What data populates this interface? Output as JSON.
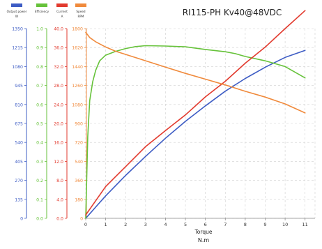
{
  "chart_data": {
    "type": "line",
    "title": "RI115-PH Kv40@48VDC",
    "xlabel": "Torque",
    "xunit": "N.m",
    "xlim": [
      0,
      11.5
    ],
    "x_ticks": [
      0,
      1,
      2,
      3,
      4,
      5,
      6,
      7,
      8,
      9,
      10,
      11
    ],
    "grid": true,
    "legend_position": "top-left",
    "axes": [
      {
        "id": "power",
        "name": "Output power",
        "unit": "W",
        "color": "#3d5cc4",
        "ylim": [
          0,
          1350
        ],
        "ticks": [
          0,
          135,
          270,
          405,
          540,
          675,
          810,
          945,
          1080,
          1215,
          1350
        ]
      },
      {
        "id": "efficiency",
        "name": "Efficiency",
        "unit": "",
        "color": "#66c23a",
        "ylim": [
          0,
          1.0
        ],
        "ticks": [
          0.0,
          0.1,
          0.2,
          0.3,
          0.4,
          0.5,
          0.6,
          0.7,
          0.8,
          0.9,
          1.0
        ]
      },
      {
        "id": "current",
        "name": "Current",
        "unit": "A",
        "color": "#e23a2e",
        "ylim": [
          0,
          40.0
        ],
        "ticks": [
          0.0,
          4.0,
          8.0,
          12.0,
          16.0,
          20.0,
          24.0,
          28.0,
          32.0,
          36.0,
          40.0
        ]
      },
      {
        "id": "speed",
        "name": "Speed",
        "unit": "RPM",
        "color": "#f08a3c",
        "ylim": [
          0,
          1800
        ],
        "ticks": [
          0,
          180,
          360,
          540,
          720,
          900,
          1080,
          1260,
          1440,
          1620,
          1800
        ]
      }
    ],
    "series": [
      {
        "axis": "power",
        "x": [
          0,
          0.5,
          1,
          2,
          3,
          4,
          5,
          6,
          7,
          8,
          9,
          10,
          11
        ],
        "y": [
          0,
          80,
          160,
          305,
          440,
          570,
          690,
          800,
          905,
          995,
          1075,
          1145,
          1195
        ]
      },
      {
        "axis": "efficiency",
        "x": [
          0,
          0.1,
          0.2,
          0.35,
          0.5,
          0.7,
          1,
          1.5,
          2,
          2.5,
          3,
          4,
          5,
          6,
          7,
          7.5,
          8,
          9,
          10,
          11
        ],
        "y": [
          0.0,
          0.43,
          0.62,
          0.72,
          0.78,
          0.83,
          0.86,
          0.88,
          0.895,
          0.905,
          0.91,
          0.908,
          0.904,
          0.89,
          0.878,
          0.868,
          0.853,
          0.83,
          0.8,
          0.74
        ]
      },
      {
        "axis": "current",
        "x": [
          0,
          0.5,
          1,
          2,
          3,
          4,
          5,
          6,
          7,
          8,
          9,
          10,
          11
        ],
        "y": [
          0.7,
          3.7,
          6.7,
          10.9,
          15.1,
          18.5,
          21.8,
          25.6,
          28.9,
          32.7,
          36.1,
          40.0,
          43.8
        ]
      },
      {
        "axis": "speed",
        "x": [
          0,
          0.2,
          0.5,
          1,
          1.5,
          2,
          3,
          4,
          5,
          6,
          7,
          8,
          9,
          10,
          11
        ],
        "y": [
          1765,
          1715,
          1675,
          1625,
          1585,
          1555,
          1495,
          1435,
          1375,
          1320,
          1265,
          1205,
          1150,
          1085,
          1000
        ]
      }
    ]
  }
}
